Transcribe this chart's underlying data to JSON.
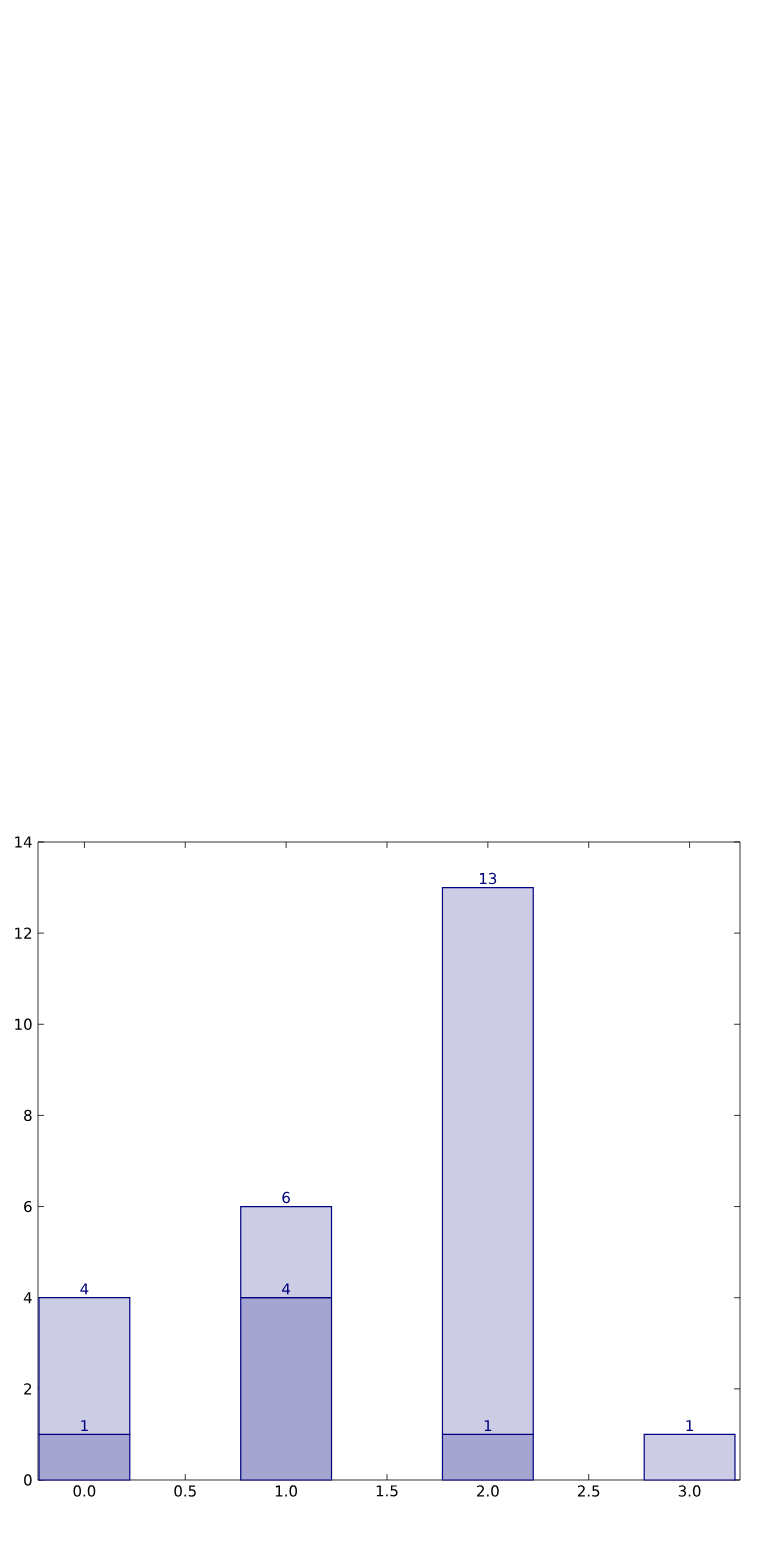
{
  "chart_data": {
    "type": "bar",
    "stacked": true,
    "x": [
      0,
      1,
      2,
      3
    ],
    "series": [
      {
        "color": "#a5a5d2",
        "values": [
          1,
          4,
          1,
          null
        ],
        "value_labels": [
          "1",
          "4",
          "1",
          null
        ]
      },
      {
        "color": "#ccccE5",
        "values": [
          3,
          2,
          12,
          1
        ]
      }
    ],
    "totals": [
      "4",
      "6",
      "13",
      "1"
    ],
    "xlim": [
      -0.23,
      3.25
    ],
    "ylim": [
      0,
      14
    ],
    "xticks": [
      {
        "value": 0,
        "label": "0.0"
      },
      {
        "value": 0.5,
        "label": "0.5"
      },
      {
        "value": 1,
        "label": "1.0"
      },
      {
        "value": 1.5,
        "label": "1.5"
      },
      {
        "value": 2,
        "label": "2.0"
      },
      {
        "value": 2.5,
        "label": "2.5"
      },
      {
        "value": 3,
        "label": "3.0"
      }
    ],
    "yticks": [
      0,
      2,
      4,
      6,
      8,
      10,
      12,
      14
    ]
  }
}
